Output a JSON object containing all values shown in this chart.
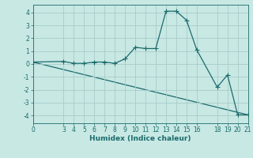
{
  "xlabel": "Humidex (Indice chaleur)",
  "ylabel": "",
  "background_color": "#c8e8e4",
  "grid_color": "#a8ccc8",
  "line_color": "#1a6b6b",
  "line1_x": [
    0,
    3,
    4,
    5,
    6,
    7,
    8,
    9,
    10,
    11,
    12,
    13,
    14,
    15,
    16,
    18,
    19,
    20,
    21
  ],
  "line1_y": [
    0.15,
    0.2,
    0.05,
    0.05,
    0.15,
    0.15,
    0.05,
    0.4,
    1.3,
    1.2,
    1.2,
    4.1,
    4.1,
    3.4,
    1.1,
    -1.8,
    -0.85,
    -3.95,
    -3.95
  ],
  "line2_x": [
    0,
    21
  ],
  "line2_y": [
    0.15,
    -3.95
  ],
  "xticks": [
    0,
    3,
    4,
    5,
    6,
    7,
    8,
    9,
    10,
    11,
    12,
    13,
    14,
    15,
    16,
    18,
    19,
    20,
    21
  ],
  "yticks": [
    -4,
    -3,
    -2,
    -1,
    0,
    1,
    2,
    3,
    4
  ],
  "xlim": [
    0,
    21
  ],
  "ylim": [
    -4.6,
    4.6
  ],
  "marker": "+",
  "markersize": 4,
  "linewidth": 0.9,
  "label_fontsize": 6.5,
  "tick_fontsize": 5.5
}
